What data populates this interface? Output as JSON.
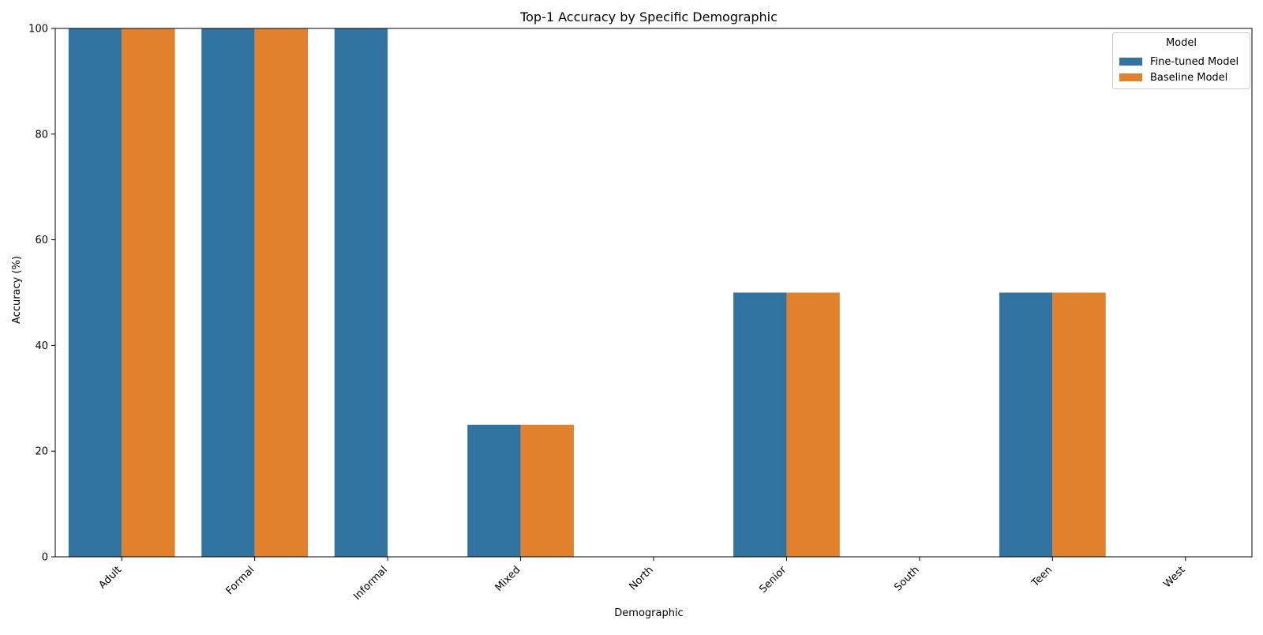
{
  "chart_data": {
    "type": "bar",
    "title": "Top-1 Accuracy by Specific Demographic",
    "xlabel": "Demographic",
    "ylabel": "Accuracy (%)",
    "ylim": [
      0,
      100
    ],
    "yticks": [
      0,
      20,
      40,
      60,
      80,
      100
    ],
    "categories": [
      "Adult",
      "Formal",
      "Informal",
      "Mixed",
      "North",
      "Senior",
      "South",
      "Teen",
      "West"
    ],
    "series": [
      {
        "name": "Fine-tuned Model",
        "color": "#3274a1",
        "values": [
          100,
          100,
          100,
          25,
          0,
          50,
          0,
          50,
          0
        ]
      },
      {
        "name": "Baseline Model",
        "color": "#e1812c",
        "values": [
          100,
          100,
          0,
          25,
          0,
          50,
          0,
          50,
          0
        ]
      }
    ],
    "legend": {
      "title": "Model",
      "placement": "top-right"
    },
    "grid": false
  }
}
